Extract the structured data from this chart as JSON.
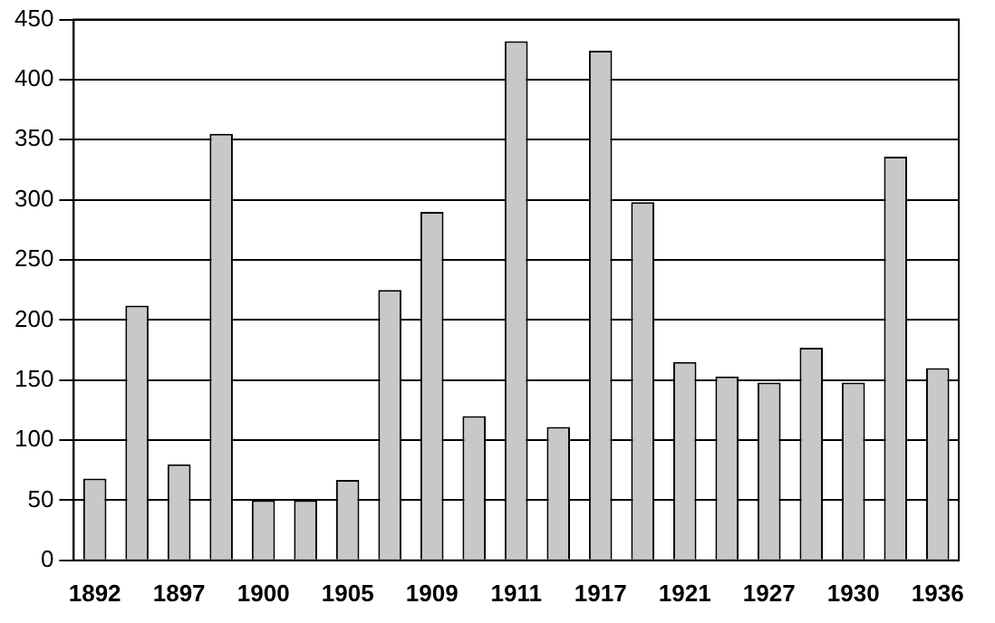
{
  "chart_data": {
    "type": "bar",
    "categories": [
      "1892",
      null,
      "1897",
      null,
      "1900",
      null,
      "1905",
      null,
      "1909",
      null,
      "1911",
      null,
      "1917",
      null,
      "1921",
      null,
      "1927",
      null,
      "1930",
      null,
      "1936"
    ],
    "values": [
      68,
      212,
      80,
      355,
      50,
      50,
      67,
      225,
      290,
      120,
      432,
      111,
      424,
      298,
      165,
      153,
      148,
      177,
      148,
      336,
      160
    ],
    "color": "#c8c8c8",
    "ylim": [
      0,
      450
    ],
    "yticks": [
      0,
      50,
      100,
      150,
      200,
      250,
      300,
      350,
      400,
      450
    ],
    "grid": "y",
    "legend": false
  }
}
